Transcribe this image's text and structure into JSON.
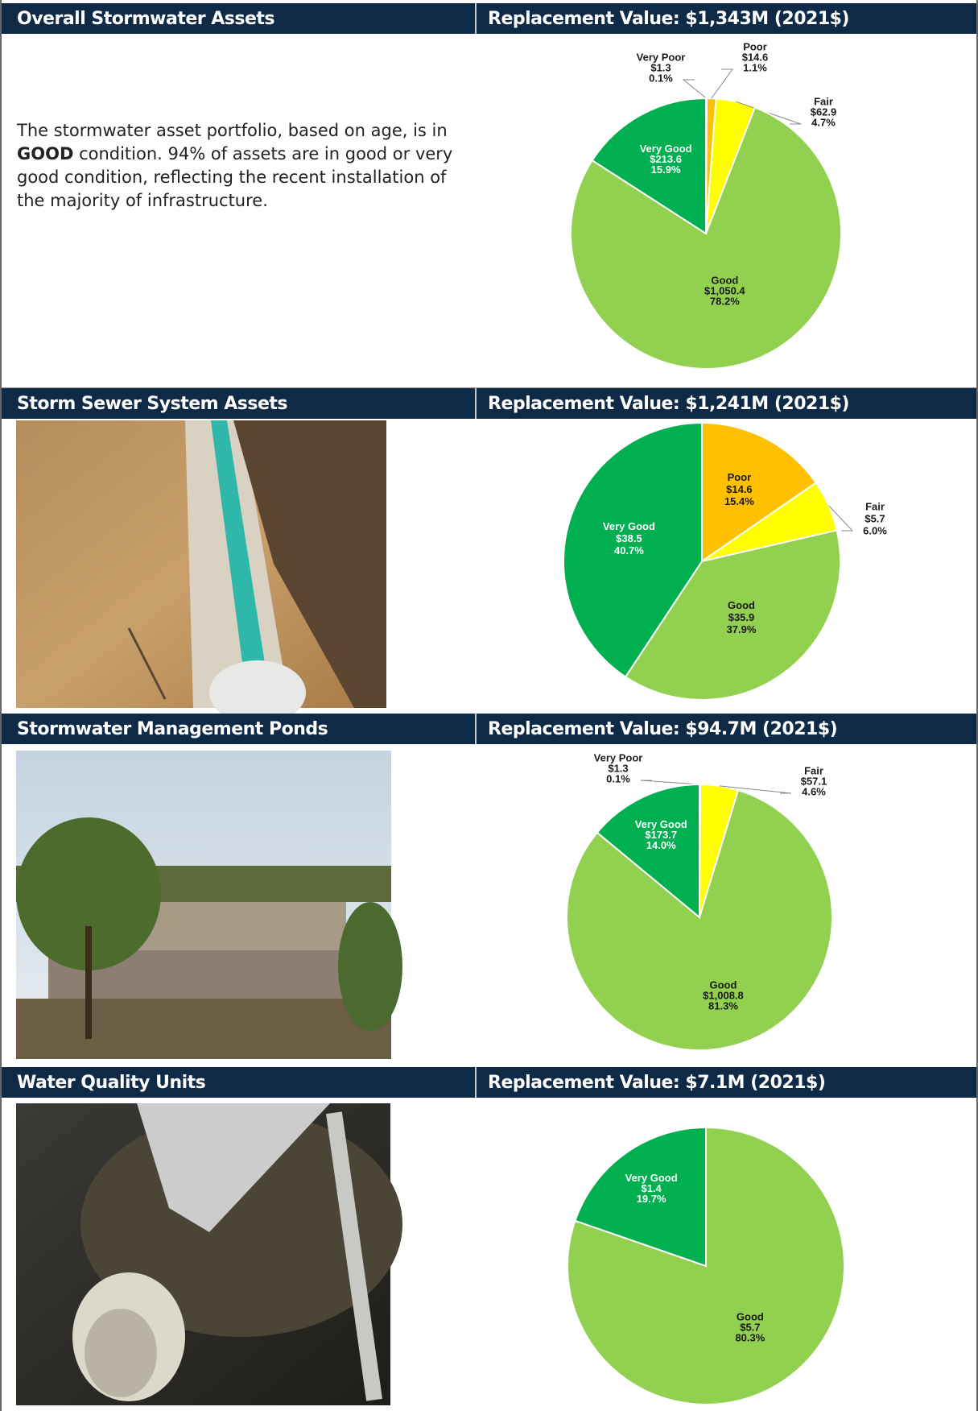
{
  "sections": [
    {
      "title": "Overall Stormwater Assets",
      "replacement_value": "Replacement Value: $1,343M (2021$)",
      "text": [
        "The stormwater asset portfolio, based on age, is in",
        "GOOD",
        "condition. 94% of assets are in good or very",
        "good condition, reflecting the recent installation of",
        "the majority of infrastructure."
      ]
    },
    {
      "title": "Storm Sewer System Assets",
      "replacement_value": "Replacement Value: $1,241M (2021$)"
    },
    {
      "title": "Stormwater Management Ponds",
      "replacement_value": "Replacement Value: $94.7M (2021$)"
    },
    {
      "title": "Water Quality Units",
      "replacement_value": "Replacement Value: $7.1M (2021$)"
    }
  ],
  "chart_data": [
    {
      "type": "pie",
      "categories": [
        "Very Poor",
        "Poor",
        "Fair",
        "Good",
        "Very Good"
      ],
      "values": [
        0.1,
        1.1,
        4.7,
        78.2,
        15.9
      ],
      "value_labels": [
        "0.1%",
        "1.1%",
        "4.7%",
        "78.2%",
        "15.9%"
      ],
      "amounts": [
        1.3,
        14.6,
        62.9,
        1050.4,
        213.6
      ],
      "amount_labels": [
        "$1.3",
        "$14.6",
        "$62.9",
        "$1,050.4",
        "$213.6"
      ],
      "colors": [
        "#f4931e",
        "#ffc000",
        "#ffff00",
        "#92d050",
        "#00b050"
      ]
    },
    {
      "type": "pie",
      "categories": [
        "Poor",
        "Fair",
        "Good",
        "Very Good"
      ],
      "values": [
        15.4,
        6.0,
        37.9,
        40.7
      ],
      "value_labels": [
        "15.4%",
        "6.0%",
        "37.9%",
        "40.7%"
      ],
      "amounts": [
        14.6,
        5.7,
        35.9,
        38.5
      ],
      "amount_labels": [
        "$14.6",
        "$5.7",
        "$35.9",
        "$38.5"
      ],
      "colors": [
        "#ffc000",
        "#ffff00",
        "#92d050",
        "#00b050"
      ]
    },
    {
      "type": "pie",
      "categories": [
        "Very Poor",
        "Fair",
        "Good",
        "Very Good"
      ],
      "values": [
        0.1,
        4.6,
        81.3,
        14.0
      ],
      "value_labels": [
        "0.1%",
        "4.6%",
        "81.3%",
        "14.0%"
      ],
      "amounts": [
        1.3,
        57.1,
        1008.8,
        173.7
      ],
      "amount_labels": [
        "$1.3",
        "$57.1",
        "$1,008.8",
        "$173.7"
      ],
      "colors": [
        "#f4931e",
        "#ffff00",
        "#92d050",
        "#00b050"
      ]
    },
    {
      "type": "pie",
      "categories": [
        "Good",
        "Very Good"
      ],
      "values": [
        80.3,
        19.7
      ],
      "value_labels": [
        "80.3%",
        "19.7%"
      ],
      "amounts": [
        5.7,
        1.4
      ],
      "amount_labels": [
        "$5.7",
        "$1.4"
      ],
      "colors": [
        "#92d050",
        "#00b050"
      ]
    }
  ]
}
